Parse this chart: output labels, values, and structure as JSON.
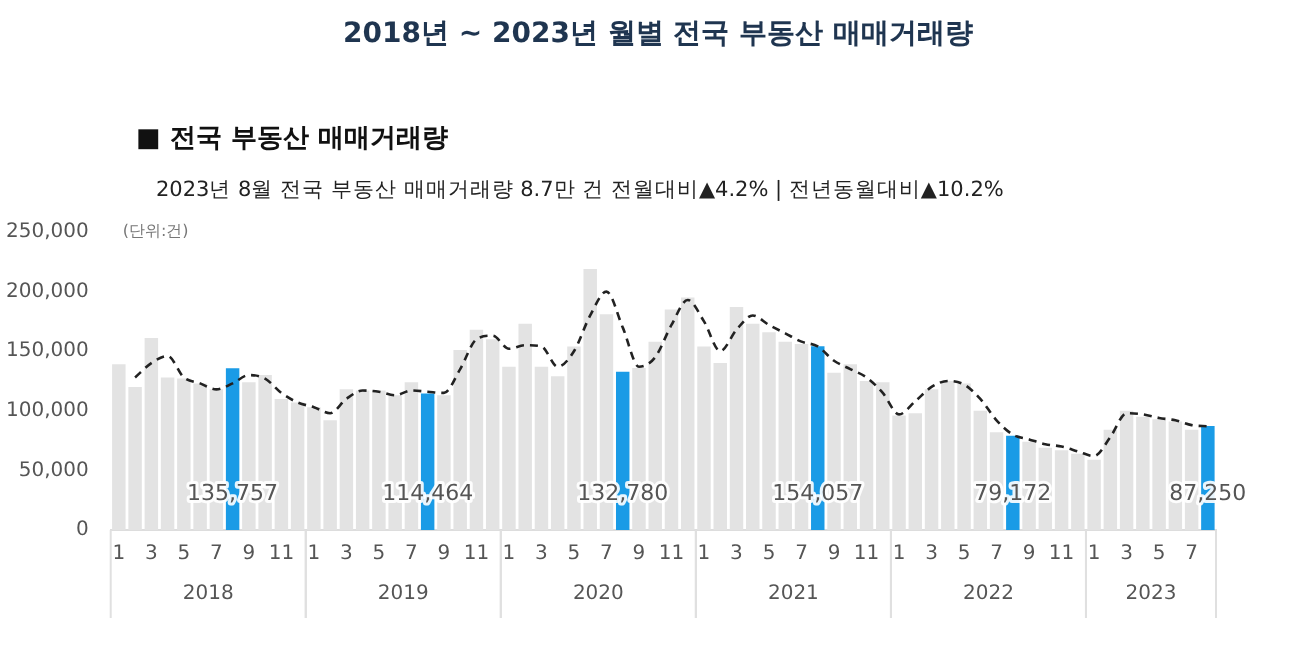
{
  "chart_data": {
    "type": "bar",
    "title": "2018년 ~ 2023년 월별 전국 부동산 매매거래량",
    "subtitle": "■ 전국 부동산 매매거래량",
    "ylabel": "(단위:건)",
    "annotations": [
      "2023년 8월 전국 부동산 매매거래량 8.7만 건  전월대비▲4.2% | 전년동월대비▲10.2%",
      "2018",
      "2019",
      "2020",
      "2021",
      "2022",
      "2023"
    ],
    "categories": [
      "1",
      null,
      "3",
      null,
      "5",
      null,
      "7",
      null,
      "9",
      null,
      "11",
      null,
      "1",
      null,
      "3",
      null,
      "5",
      null,
      "7",
      null,
      "9",
      null,
      "11",
      null,
      "1",
      null,
      "3",
      null,
      "5",
      null,
      "7",
      null,
      "9",
      null,
      "11",
      null,
      "1",
      null,
      "3",
      null,
      "5",
      null,
      "7",
      null,
      "9",
      null,
      "11",
      null,
      "1",
      null,
      "3",
      null,
      "5",
      null,
      "7",
      null,
      "9",
      null,
      "11",
      null,
      "1",
      null,
      "3",
      null,
      "5",
      null,
      "7",
      null
    ],
    "series": [
      {
        "values": [
          139000,
          120000,
          161000,
          128000,
          127000,
          123000,
          118000,
          135757,
          124000,
          130000,
          110000,
          107000,
          103000,
          92000,
          118000,
          117000,
          117000,
          113000,
          124000,
          114464,
          113000,
          151000,
          168000,
          160000,
          137000,
          173000,
          137000,
          129000,
          154000,
          219000,
          181000,
          132780,
          136000,
          158000,
          185000,
          195000,
          154000,
          140000,
          187000,
          173000,
          166000,
          158000,
          156000,
          154057,
          132000,
          139000,
          125000,
          124000,
          96000,
          98000,
          118000,
          125000,
          123000,
          100000,
          82000,
          79172,
          74000,
          69000,
          67000,
          64000,
          59000,
          84000,
          100000,
          95000,
          93000,
          91000,
          84000,
          87250
        ],
        "colors": [
          "#e3e3e3",
          "#e3e3e3",
          "#e3e3e3",
          "#e3e3e3",
          "#e3e3e3",
          "#e3e3e3",
          "#e3e3e3",
          "#1a9be6",
          "#e3e3e3",
          "#e3e3e3",
          "#e3e3e3",
          "#e3e3e3",
          "#e3e3e3",
          "#e3e3e3",
          "#e3e3e3",
          "#e3e3e3",
          "#e3e3e3",
          "#e3e3e3",
          "#e3e3e3",
          "#1a9be6",
          "#e3e3e3",
          "#e3e3e3",
          "#e3e3e3",
          "#e3e3e3",
          "#e3e3e3",
          "#e3e3e3",
          "#e3e3e3",
          "#e3e3e3",
          "#e3e3e3",
          "#e3e3e3",
          "#e3e3e3",
          "#1a9be6",
          "#e3e3e3",
          "#e3e3e3",
          "#e3e3e3",
          "#e3e3e3",
          "#e3e3e3",
          "#e3e3e3",
          "#e3e3e3",
          "#e3e3e3",
          "#e3e3e3",
          "#e3e3e3",
          "#e3e3e3",
          "#1a9be6",
          "#e3e3e3",
          "#e3e3e3",
          "#e3e3e3",
          "#e3e3e3",
          "#e3e3e3",
          "#e3e3e3",
          "#e3e3e3",
          "#e3e3e3",
          "#e3e3e3",
          "#e3e3e3",
          "#e3e3e3",
          "#1a9be6",
          "#e3e3e3",
          "#e3e3e3",
          "#e3e3e3",
          "#e3e3e3",
          "#e3e3e3",
          "#e3e3e3",
          "#e3e3e3",
          "#e3e3e3",
          "#e3e3e3",
          "#e3e3e3",
          "#e3e3e3",
          "#1a9be6"
        ],
        "value_labels": [
          null,
          null,
          null,
          null,
          null,
          null,
          null,
          "135,757",
          null,
          null,
          null,
          null,
          null,
          null,
          null,
          null,
          null,
          null,
          null,
          "114,464",
          null,
          null,
          null,
          null,
          null,
          null,
          null,
          null,
          null,
          null,
          null,
          "132,780",
          null,
          null,
          null,
          null,
          null,
          null,
          null,
          null,
          null,
          null,
          null,
          "154,057",
          null,
          null,
          null,
          null,
          null,
          null,
          null,
          null,
          null,
          null,
          null,
          "79,172",
          null,
          null,
          null,
          null,
          null,
          null,
          null,
          null,
          null,
          null,
          null,
          "87,250"
        ]
      },
      {
        "type": "line",
        "color": "#222222",
        "line_style": "dashed",
        "marker": "none",
        "values": [
          null,
          128000,
          140000,
          146000,
          128000,
          123000,
          118000,
          123000,
          130000,
          127000,
          115000,
          107000,
          103000,
          98000,
          110000,
          117000,
          116000,
          113000,
          117000,
          116000,
          115000,
          135000,
          160000,
          163000,
          152000,
          155000,
          154000,
          137000,
          150000,
          180000,
          200000,
          170000,
          137000,
          145000,
          172000,
          193000,
          175000,
          150000,
          168000,
          180000,
          172000,
          165000,
          158000,
          154000,
          142000,
          135000,
          128000,
          115000,
          97000,
          108000,
          120000,
          125000,
          122000,
          110000,
          92000,
          80000,
          76000,
          72000,
          70000,
          66000,
          62000,
          78000,
          98000,
          97000,
          94000,
          92000,
          88000,
          87000
        ]
      }
    ],
    "ylim": [
      0,
      250000
    ],
    "yticks": [
      0,
      {
        "value": 50000,
        "label": "50,000"
      },
      {
        "value": 100000,
        "label": "100,000"
      },
      {
        "value": 150000,
        "label": "150,000"
      },
      {
        "value": 200000,
        "label": "200,000"
      },
      {
        "value": 250000,
        "label": "250,000"
      }
    ],
    "grid": false,
    "legend": false
  }
}
